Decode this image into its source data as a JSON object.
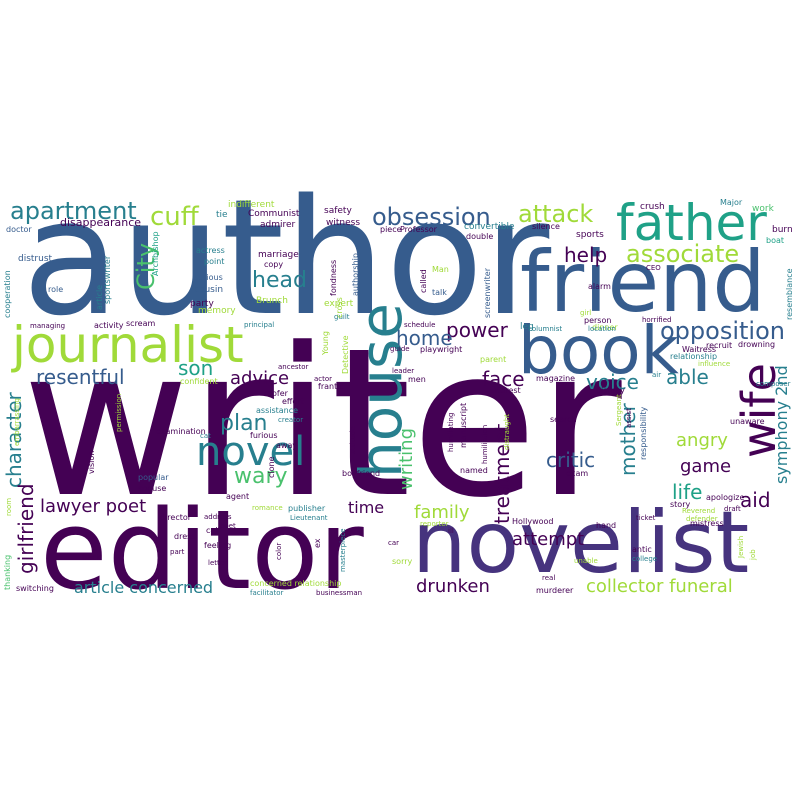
{
  "palette": {
    "purple": "#440154",
    "indigo": "#46337e",
    "blue": "#365c8d",
    "teal": "#277f8e",
    "green": "#1fa187",
    "lime": "#4ac16d",
    "yellowgreen": "#a0da39",
    "yellow": "#fde725"
  },
  "words": [
    {
      "text": "writer",
      "c": "purple"
    },
    {
      "text": "author",
      "c": "blue"
    },
    {
      "text": "editor",
      "c": "purple"
    },
    {
      "text": "novelist",
      "c": "indigo"
    },
    {
      "text": "friend",
      "c": "blue"
    },
    {
      "text": "journalist",
      "c": "yellowgreen"
    },
    {
      "text": "book",
      "c": "blue"
    },
    {
      "text": "father",
      "c": "green"
    },
    {
      "text": "house",
      "c": "teal"
    },
    {
      "text": "wife",
      "c": "purple"
    },
    {
      "text": "novel",
      "c": "teal"
    },
    {
      "text": "apartment",
      "c": "teal"
    },
    {
      "text": "obsession",
      "c": "blue"
    },
    {
      "text": "attack",
      "c": "yellowgreen"
    },
    {
      "text": "cuff",
      "c": "yellowgreen"
    },
    {
      "text": "associate",
      "c": "yellowgreen"
    },
    {
      "text": "opposition",
      "c": "blue"
    },
    {
      "text": "help",
      "c": "purple"
    },
    {
      "text": "City",
      "c": "lime"
    },
    {
      "text": "head",
      "c": "teal"
    },
    {
      "text": "power",
      "c": "purple"
    },
    {
      "text": "home",
      "c": "blue"
    },
    {
      "text": "resentful",
      "c": "blue"
    },
    {
      "text": "son",
      "c": "green"
    },
    {
      "text": "advice",
      "c": "purple"
    },
    {
      "text": "plan",
      "c": "teal"
    },
    {
      "text": "face",
      "c": "purple"
    },
    {
      "text": "voice",
      "c": "teal"
    },
    {
      "text": "able",
      "c": "teal"
    },
    {
      "text": "wary",
      "c": "lime"
    },
    {
      "text": "angry",
      "c": "yellowgreen"
    },
    {
      "text": "character",
      "c": "teal"
    },
    {
      "text": "girlfriend",
      "c": "purple"
    },
    {
      "text": "lawyer poet",
      "c": "purple"
    },
    {
      "text": "treatment",
      "c": "purple"
    },
    {
      "text": "writing",
      "c": "lime"
    },
    {
      "text": "critic",
      "c": "blue"
    },
    {
      "text": "game",
      "c": "purple"
    },
    {
      "text": "mother",
      "c": "teal"
    },
    {
      "text": "life",
      "c": "green"
    },
    {
      "text": "aid",
      "c": "purple"
    },
    {
      "text": "symphony 2nd",
      "c": "teal"
    },
    {
      "text": "family",
      "c": "yellowgreen"
    },
    {
      "text": "time",
      "c": "purple"
    },
    {
      "text": "attempt",
      "c": "purple"
    },
    {
      "text": "article concerned",
      "c": "teal"
    },
    {
      "text": "drunken",
      "c": "purple"
    },
    {
      "text": "collector funeral",
      "c": "yellowgreen"
    },
    {
      "text": "disappearance",
      "c": "purple"
    },
    {
      "text": "Communist",
      "c": "purple"
    },
    {
      "text": "admirer",
      "c": "purple"
    },
    {
      "text": "safety",
      "c": "purple"
    },
    {
      "text": "witness",
      "c": "purple"
    },
    {
      "text": "indifferent",
      "c": "yellowgreen"
    },
    {
      "text": "tie",
      "c": "teal"
    },
    {
      "text": "crush",
      "c": "purple"
    },
    {
      "text": "Major",
      "c": "teal"
    },
    {
      "text": "work",
      "c": "lime"
    },
    {
      "text": "burn",
      "c": "purple"
    },
    {
      "text": "boat",
      "c": "green"
    },
    {
      "text": "doctor",
      "c": "blue"
    },
    {
      "text": "distrust",
      "c": "blue"
    },
    {
      "text": "Archbishop",
      "c": "green"
    },
    {
      "text": "actress",
      "c": "teal"
    },
    {
      "text": "point",
      "c": "teal"
    },
    {
      "text": "serious",
      "c": "blue"
    },
    {
      "text": "marriage",
      "c": "purple"
    },
    {
      "text": "copy",
      "c": "purple"
    },
    {
      "text": "cousin",
      "c": "blue"
    },
    {
      "text": "Brunch",
      "c": "yellowgreen"
    },
    {
      "text": "party",
      "c": "purple"
    },
    {
      "text": "memory",
      "c": "yellowgreen"
    },
    {
      "text": "fondness",
      "c": "purple"
    },
    {
      "text": "expert",
      "c": "yellowgreen"
    },
    {
      "text": "authorship",
      "c": "blue"
    },
    {
      "text": "piece",
      "c": "purple"
    },
    {
      "text": "Professor",
      "c": "purple"
    },
    {
      "text": "convertible",
      "c": "teal"
    },
    {
      "text": "silence",
      "c": "purple"
    },
    {
      "text": "double",
      "c": "purple"
    },
    {
      "text": "sports",
      "c": "purple"
    },
    {
      "text": "Man",
      "c": "yellowgreen"
    },
    {
      "text": "talk",
      "c": "blue"
    },
    {
      "text": "called",
      "c": "purple"
    },
    {
      "text": "screenwriter",
      "c": "blue"
    },
    {
      "text": "leg",
      "c": "teal"
    },
    {
      "text": "alarm",
      "c": "purple"
    },
    {
      "text": "person",
      "c": "purple"
    },
    {
      "text": "dinner",
      "c": "yellowgreen"
    },
    {
      "text": "CEO",
      "c": "purple"
    },
    {
      "text": "resemblance",
      "c": "teal"
    },
    {
      "text": "cooperation",
      "c": "teal"
    },
    {
      "text": "role",
      "c": "blue"
    },
    {
      "text": "article",
      "c": "teal"
    },
    {
      "text": "sportswriter",
      "c": "teal"
    },
    {
      "text": "managing",
      "c": "purple"
    },
    {
      "text": "activity",
      "c": "purple"
    },
    {
      "text": "scream",
      "c": "purple"
    },
    {
      "text": "principal",
      "c": "teal"
    },
    {
      "text": "guilt",
      "c": "teal"
    },
    {
      "text": "columnist",
      "c": "teal"
    },
    {
      "text": "location",
      "c": "teal"
    },
    {
      "text": "horrified",
      "c": "purple"
    },
    {
      "text": "schedule",
      "c": "purple"
    },
    {
      "text": "guide",
      "c": "purple"
    },
    {
      "text": "playwright",
      "c": "purple"
    },
    {
      "text": "parent",
      "c": "yellowgreen"
    },
    {
      "text": "Waitress",
      "c": "purple"
    },
    {
      "text": "relationship",
      "c": "teal"
    },
    {
      "text": "influence",
      "c": "yellowgreen"
    },
    {
      "text": "drowning",
      "c": "purple"
    },
    {
      "text": "composer",
      "c": "teal"
    },
    {
      "text": "confident",
      "c": "yellowgreen"
    },
    {
      "text": "ancestor",
      "c": "purple"
    },
    {
      "text": "roofer",
      "c": "purple"
    },
    {
      "text": "actor",
      "c": "purple"
    },
    {
      "text": "Detective",
      "c": "yellowgreen"
    },
    {
      "text": "Young",
      "c": "yellowgreen"
    },
    {
      "text": "cross",
      "c": "yellowgreen"
    },
    {
      "text": "men",
      "c": "purple"
    },
    {
      "text": "interest",
      "c": "purple"
    },
    {
      "text": "magazine",
      "c": "purple"
    },
    {
      "text": "dismay",
      "c": "purple"
    },
    {
      "text": "air",
      "c": "teal"
    },
    {
      "text": "frantic",
      "c": "purple"
    },
    {
      "text": "leader",
      "c": "purple"
    },
    {
      "text": "effort",
      "c": "purple"
    },
    {
      "text": "assistance",
      "c": "teal"
    },
    {
      "text": "creator",
      "c": "teal"
    },
    {
      "text": "examination",
      "c": "purple"
    },
    {
      "text": "furious",
      "c": "purple"
    },
    {
      "text": "away",
      "c": "purple"
    },
    {
      "text": "clone",
      "c": "purple"
    },
    {
      "text": "cat",
      "c": "teal"
    },
    {
      "text": "permission",
      "c": "yellowgreen"
    },
    {
      "text": "vision",
      "c": "purple"
    },
    {
      "text": "popular",
      "c": "blue"
    },
    {
      "text": "spouse",
      "c": "purple"
    },
    {
      "text": "agent",
      "c": "purple"
    },
    {
      "text": "embarrassing",
      "c": "yellowgreen"
    },
    {
      "text": "room",
      "c": "yellowgreen"
    },
    {
      "text": "attitude",
      "c": "purple"
    },
    {
      "text": "humiliating",
      "c": "purple"
    },
    {
      "text": "manuscript",
      "c": "purple"
    },
    {
      "text": "named",
      "c": "purple"
    },
    {
      "text": "humiliation",
      "c": "purple"
    },
    {
      "text": "distraught",
      "c": "yellowgreen"
    },
    {
      "text": "boyfriend",
      "c": "purple"
    },
    {
      "text": "exam",
      "c": "purple"
    },
    {
      "text": "search",
      "c": "purple"
    },
    {
      "text": "assist",
      "c": "purple"
    },
    {
      "text": "responsibility",
      "c": "blue"
    },
    {
      "text": "unaware",
      "c": "purple"
    },
    {
      "text": "apologize",
      "c": "purple"
    },
    {
      "text": "story",
      "c": "purple"
    },
    {
      "text": "Reverend",
      "c": "yellowgreen"
    },
    {
      "text": "draft",
      "c": "purple"
    },
    {
      "text": "defender",
      "c": "yellowgreen"
    },
    {
      "text": "director",
      "c": "purple"
    },
    {
      "text": "call",
      "c": "purple"
    },
    {
      "text": "romance",
      "c": "yellowgreen"
    },
    {
      "text": "publisher",
      "c": "teal"
    },
    {
      "text": "Lieutenant",
      "c": "teal"
    },
    {
      "text": "Sergeant",
      "c": "yellowgreen"
    },
    {
      "text": "reporter",
      "c": "yellowgreen"
    },
    {
      "text": "Hollywood",
      "c": "purple"
    },
    {
      "text": "hand",
      "c": "purple"
    },
    {
      "text": "ticket",
      "c": "purple"
    },
    {
      "text": "mistress",
      "c": "purple"
    },
    {
      "text": "dress",
      "c": "purple"
    },
    {
      "text": "part",
      "c": "purple"
    },
    {
      "text": "feeling",
      "c": "purple"
    },
    {
      "text": "address",
      "c": "purple"
    },
    {
      "text": "poet",
      "c": "purple"
    },
    {
      "text": "letter",
      "c": "purple"
    },
    {
      "text": "color",
      "c": "purple"
    },
    {
      "text": "ex",
      "c": "purple"
    },
    {
      "text": "masterpiece",
      "c": "teal"
    },
    {
      "text": "car",
      "c": "purple"
    },
    {
      "text": "sorry",
      "c": "yellowgreen"
    },
    {
      "text": "ill",
      "c": "purple"
    },
    {
      "text": "real",
      "c": "purple"
    },
    {
      "text": "antic",
      "c": "purple"
    },
    {
      "text": "college",
      "c": "teal"
    },
    {
      "text": "unable",
      "c": "yellowgreen"
    },
    {
      "text": "Jewish",
      "c": "yellowgreen"
    },
    {
      "text": "job",
      "c": "yellowgreen"
    },
    {
      "text": "thanking",
      "c": "lime"
    },
    {
      "text": "back",
      "c": "purple"
    },
    {
      "text": "switching",
      "c": "purple"
    },
    {
      "text": "concerned relationship",
      "c": "yellowgreen"
    },
    {
      "text": "facilitator",
      "c": "teal"
    },
    {
      "text": "businessman",
      "c": "purple"
    },
    {
      "text": "murderer",
      "c": "purple"
    },
    {
      "text": "recruit",
      "c": "purple"
    },
    {
      "text": "girl",
      "c": "yellowgreen"
    }
  ]
}
